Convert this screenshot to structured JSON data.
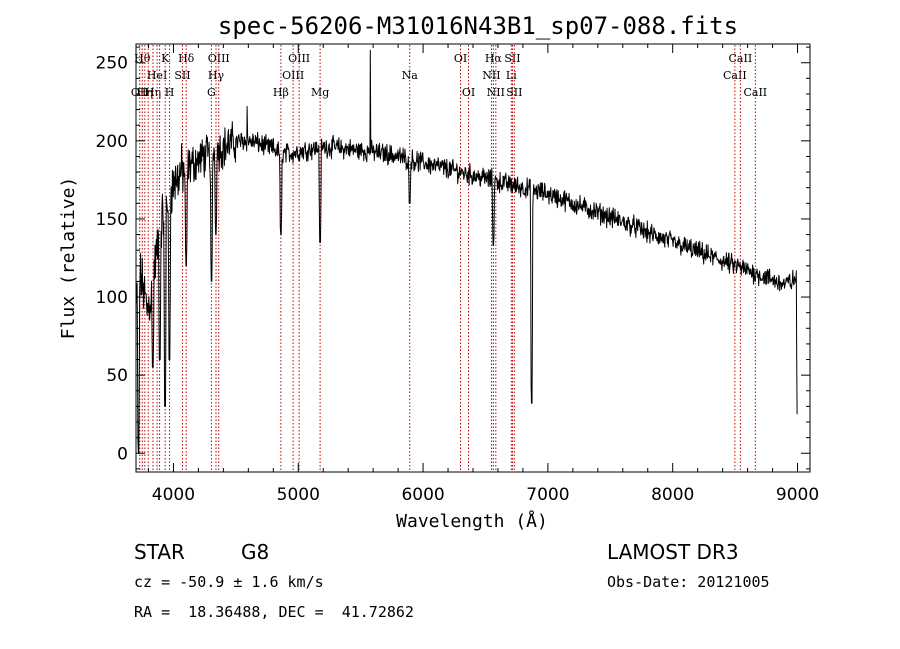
{
  "chart_data": {
    "type": "line",
    "title": "spec-56206-M31016N43B1_sp07-088.fits",
    "xlabel": "Wavelength (Å)",
    "ylabel": "Flux (relative)",
    "xlim": [
      3700,
      9100
    ],
    "ylim": [
      -12,
      262
    ],
    "xticks": [
      4000,
      5000,
      6000,
      7000,
      8000,
      9000
    ],
    "yticks": [
      0,
      50,
      100,
      150,
      200,
      250
    ],
    "x_minor_step": 200,
    "y_minor_step": 10,
    "series": [
      {
        "name": "spectrum",
        "x": [
          3705,
          3730,
          3760,
          3790,
          3820,
          3850,
          3880,
          3910,
          3940,
          3970,
          4000,
          4030,
          4060,
          4100,
          4150,
          4200,
          4250,
          4300,
          4350,
          4400,
          4450,
          4500,
          4550,
          4600,
          4650,
          4700,
          4750,
          4800,
          4850,
          4900,
          4950,
          5000,
          5050,
          5100,
          5150,
          5200,
          5250,
          5300,
          5350,
          5400,
          5450,
          5500,
          5550,
          5600,
          5650,
          5700,
          5750,
          5800,
          5850,
          5900,
          5950,
          6000,
          6050,
          6100,
          6150,
          6200,
          6250,
          6300,
          6350,
          6400,
          6450,
          6500,
          6550,
          6600,
          6650,
          6700,
          6750,
          6800,
          6850,
          6900,
          6950,
          7000,
          7100,
          7200,
          7300,
          7400,
          7500,
          7600,
          7700,
          7800,
          7900,
          8000,
          8100,
          8200,
          8300,
          8400,
          8500,
          8600,
          8700,
          8800,
          8900,
          8950,
          9000
        ],
        "y": [
          95,
          115,
          105,
          92,
          100,
          120,
          135,
          150,
          160,
          168,
          172,
          176,
          180,
          182,
          185,
          188,
          190,
          192,
          194,
          196,
          198,
          199,
          200,
          200,
          199,
          198,
          196,
          195,
          193,
          192,
          192,
          193,
          194,
          195,
          195,
          196,
          196,
          196,
          195,
          195,
          194,
          194,
          193,
          193,
          192,
          192,
          191,
          190,
          189,
          188,
          187,
          186,
          185,
          184,
          183,
          182,
          181,
          180,
          179,
          178,
          177,
          176,
          175,
          174,
          173,
          172,
          171,
          170,
          169,
          168,
          167,
          166,
          163,
          160,
          157,
          154,
          151,
          148,
          145,
          141,
          138,
          135,
          132,
          129,
          126,
          123,
          120,
          117,
          114,
          111,
          108,
          110,
          112
        ]
      }
    ],
    "absorption_dips": [
      {
        "x": 3720,
        "y": 0
      },
      {
        "x": 3835,
        "y": 55
      },
      {
        "x": 3890,
        "y": 60
      },
      {
        "x": 3933,
        "y": 30
      },
      {
        "x": 3968,
        "y": 60
      },
      {
        "x": 4102,
        "y": 120
      },
      {
        "x": 4305,
        "y": 110
      },
      {
        "x": 4340,
        "y": 140
      },
      {
        "x": 4861,
        "y": 140
      },
      {
        "x": 5175,
        "y": 135
      },
      {
        "x": 5893,
        "y": 160
      },
      {
        "x": 6563,
        "y": 133
      },
      {
        "x": 6870,
        "y": 32
      },
      {
        "x": 9000,
        "y": 25
      }
    ],
    "spikes": [
      {
        "x": 4590,
        "y": 222
      },
      {
        "x": 5577,
        "y": 258
      }
    ],
    "lines": [
      {
        "x": 3730,
        "label": "OII",
        "row": 3
      },
      {
        "x": 3750,
        "label": "Hθ",
        "row": 1
      },
      {
        "x": 3771,
        "label": "Hη",
        "row": 3
      },
      {
        "x": 3798,
        "label": "",
        "row": 1
      },
      {
        "x": 3836,
        "label": "Hη",
        "row": 3
      },
      {
        "x": 3869,
        "label": "HeI",
        "row": 2
      },
      {
        "x": 3889,
        "label": "",
        "row": 2
      },
      {
        "x": 3934,
        "label": "K",
        "row": 1
      },
      {
        "x": 3969,
        "label": "H",
        "row": 3
      },
      {
        "x": 4072,
        "label": "SII",
        "row": 2
      },
      {
        "x": 4102,
        "label": "Hδ",
        "row": 1
      },
      {
        "x": 4304,
        "label": "G",
        "row": 3
      },
      {
        "x": 4341,
        "label": "Hγ",
        "row": 2
      },
      {
        "x": 4363,
        "label": "OIII",
        "row": 1
      },
      {
        "x": 4861,
        "label": "Hβ",
        "row": 3
      },
      {
        "x": 4959,
        "label": "OIII",
        "row": 2
      },
      {
        "x": 5007,
        "label": "OIII",
        "row": 1
      },
      {
        "x": 5175,
        "label": "Mg",
        "row": 3
      },
      {
        "x": 5893,
        "label": "Na",
        "row": 2
      },
      {
        "x": 6300,
        "label": "OI",
        "row": 1
      },
      {
        "x": 6364,
        "label": "OI",
        "row": 3
      },
      {
        "x": 6548,
        "label": "NII",
        "row": 2
      },
      {
        "x": 6563,
        "label": "Hα",
        "row": 1
      },
      {
        "x": 6583,
        "label": "NII",
        "row": 3
      },
      {
        "x": 6707,
        "label": "Li",
        "row": 2
      },
      {
        "x": 6716,
        "label": "SII",
        "row": 1
      },
      {
        "x": 6731,
        "label": "SII",
        "row": 3
      },
      {
        "x": 8498,
        "label": "CaII",
        "row": 2
      },
      {
        "x": 8542,
        "label": "CaII",
        "row": 1
      },
      {
        "x": 8662,
        "label": "CaII",
        "row": 3
      }
    ]
  },
  "info": {
    "class_label": "STAR",
    "subclass": "G8",
    "redshift_text": "cz = -50.9 ± 1.6 km/s",
    "coordinates_text": "RA =  18.36488, DEC =  41.72862",
    "survey": "LAMOST DR3",
    "obs_date_text": "Obs-Date: 20121005"
  }
}
